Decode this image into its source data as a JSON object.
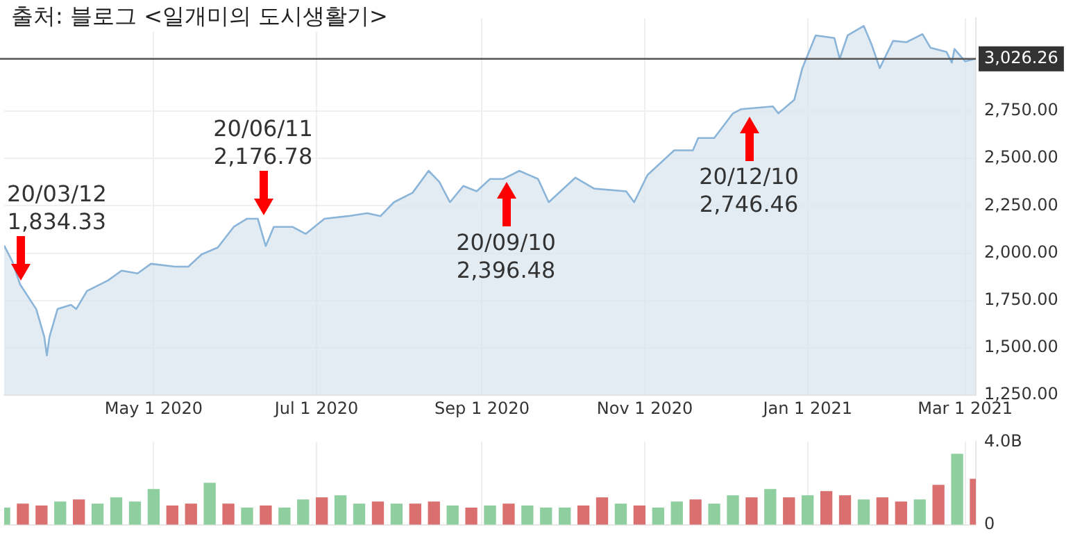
{
  "chart_data": [
    {
      "type": "area",
      "title": "출처: 블로그 <일개미의 도시생활기>",
      "series": [
        {
          "color": "#8ab4d8",
          "x": [
            "2020-03-06",
            "2020-03-09",
            "2020-03-12",
            "2020-03-18",
            "2020-03-21",
            "2020-03-22",
            "2020-03-23",
            "2020-03-26",
            "2020-03-31",
            "2020-04-02",
            "2020-04-06",
            "2020-04-14",
            "2020-04-19",
            "2020-04-25",
            "2020-04-30",
            "2020-05-09",
            "2020-05-14",
            "2020-05-19",
            "2020-05-25",
            "2020-05-31",
            "2020-06-05",
            "2020-06-09",
            "2020-06-12",
            "2020-06-15",
            "2020-06-22",
            "2020-06-27",
            "2020-07-04",
            "2020-07-13",
            "2020-07-20",
            "2020-07-25",
            "2020-07-30",
            "2020-08-06",
            "2020-08-12",
            "2020-08-16",
            "2020-08-20",
            "2020-08-25",
            "2020-08-30",
            "2020-09-04",
            "2020-09-09",
            "2020-09-15",
            "2020-09-22",
            "2020-09-26",
            "2020-10-06",
            "2020-10-13",
            "2020-10-25",
            "2020-10-28",
            "2020-11-02",
            "2020-11-12",
            "2020-11-19",
            "2020-11-21",
            "2020-11-27",
            "2020-12-04",
            "2020-12-07",
            "2020-12-19",
            "2020-12-21",
            "2020-12-27",
            "2020-12-30",
            "2021-01-04",
            "2021-01-11",
            "2021-01-13",
            "2021-01-16",
            "2021-01-22",
            "2021-01-25",
            "2021-01-28",
            "2021-02-02",
            "2021-02-07",
            "2021-02-13",
            "2021-02-16",
            "2021-02-22",
            "2021-02-24",
            "2021-02-25",
            "2021-03-01",
            "2021-03-05"
          ],
          "values": [
            2040,
            1958,
            1834.33,
            1705,
            1560,
            1460,
            1560,
            1705,
            1727,
            1705,
            1800,
            1857,
            1908,
            1893,
            1944,
            1929,
            1929,
            1994,
            2030,
            2139,
            2182,
            2182,
            2038,
            2139,
            2139,
            2102,
            2182,
            2196,
            2211,
            2196,
            2269,
            2319,
            2435,
            2377,
            2269,
            2355,
            2327,
            2392,
            2392,
            2435,
            2392,
            2269,
            2399,
            2341,
            2327,
            2269,
            2413,
            2543,
            2543,
            2608,
            2608,
            2738,
            2760,
            2775,
            2738,
            2810,
            2977,
            3150,
            3136,
            3027,
            3150,
            3200,
            3100,
            2977,
            3121,
            3114,
            3157,
            3085,
            3063,
            3006,
            3078,
            3013,
            3026.26
          ]
        }
      ],
      "xlim": [
        "2020-03-06",
        "2021-03-05"
      ],
      "xticks": [
        {
          "value": "2020-05-01",
          "label": "May 1 2020"
        },
        {
          "value": "2020-07-01",
          "label": "Jul 1 2020"
        },
        {
          "value": "2020-09-01",
          "label": "Sep 1 2020"
        },
        {
          "value": "2020-11-01",
          "label": "Nov 1 2020"
        },
        {
          "value": "2021-01-01",
          "label": "Jan 1 2021"
        },
        {
          "value": "2021-03-01",
          "label": "Mar 1 2021"
        }
      ],
      "ylim": [
        1250,
        3240
      ],
      "yticks": [
        {
          "value": 1250,
          "label": "1,250.00"
        },
        {
          "value": 1500,
          "label": "1,500.00"
        },
        {
          "value": 1750,
          "label": "1,750.00"
        },
        {
          "value": 2000,
          "label": "2,000.00"
        },
        {
          "value": 2250,
          "label": "2,250.00"
        },
        {
          "value": 2500,
          "label": "2,500.00"
        },
        {
          "value": 2750,
          "label": "2,750.00"
        }
      ],
      "ref_lines": [
        {
          "axis": "y",
          "value": 3026.26,
          "label": "3,026.26",
          "color": "#555555"
        }
      ],
      "annotations": [
        {
          "text": "20/03/12\n1,834.33",
          "x": "2020-03-12",
          "y": 1834.33
        },
        {
          "text": "20/06/11\n2,176.78",
          "x": "2020-06-11",
          "y": 2176.78
        },
        {
          "text": "20/09/10\n2,396.48",
          "x": "2020-09-10",
          "y": 2396.48
        },
        {
          "text": "20/12/10\n2,746.46",
          "x": "2020-12-10",
          "y": 2746.46
        }
      ],
      "grid": true,
      "legend": false
    },
    {
      "type": "bar",
      "x": [
        "2020-03-06",
        "2020-03-13",
        "2020-03-20",
        "2020-03-27",
        "2020-04-03",
        "2020-04-10",
        "2020-04-17",
        "2020-04-24",
        "2020-05-01",
        "2020-05-08",
        "2020-05-15",
        "2020-05-22",
        "2020-05-29",
        "2020-06-05",
        "2020-06-12",
        "2020-06-19",
        "2020-06-26",
        "2020-07-03",
        "2020-07-10",
        "2020-07-17",
        "2020-07-24",
        "2020-07-31",
        "2020-08-07",
        "2020-08-14",
        "2020-08-21",
        "2020-08-28",
        "2020-09-04",
        "2020-09-11",
        "2020-09-18",
        "2020-09-25",
        "2020-10-02",
        "2020-10-09",
        "2020-10-16",
        "2020-10-23",
        "2020-10-30",
        "2020-11-06",
        "2020-11-13",
        "2020-11-20",
        "2020-11-27",
        "2020-12-04",
        "2020-12-11",
        "2020-12-18",
        "2020-12-25",
        "2021-01-01",
        "2021-01-08",
        "2021-01-15",
        "2021-01-22",
        "2021-01-29",
        "2021-02-05",
        "2021-02-12",
        "2021-02-19",
        "2021-02-26",
        "2021-03-05"
      ],
      "values": [
        0.8,
        1.0,
        0.9,
        1.1,
        1.2,
        1.0,
        1.3,
        1.1,
        1.7,
        0.9,
        1.0,
        2.0,
        1.0,
        0.8,
        0.9,
        0.8,
        1.2,
        1.3,
        1.4,
        1.0,
        1.1,
        1.0,
        1.0,
        1.1,
        0.9,
        0.8,
        0.9,
        1.0,
        0.9,
        0.8,
        0.8,
        0.9,
        1.3,
        1.0,
        0.9,
        0.8,
        1.1,
        1.2,
        1.0,
        1.4,
        1.3,
        1.7,
        1.3,
        1.4,
        1.6,
        1.4,
        1.2,
        1.3,
        1.1,
        1.2,
        1.9,
        3.4,
        2.2
      ],
      "colors": [
        "#8fcf9f",
        "#d9706f",
        "#d9706f",
        "#8fcf9f",
        "#d9706f",
        "#8fcf9f",
        "#8fcf9f",
        "#8fcf9f",
        "#8fcf9f",
        "#d9706f",
        "#d9706f",
        "#8fcf9f",
        "#d9706f",
        "#8fcf9f",
        "#d9706f",
        "#8fcf9f",
        "#8fcf9f",
        "#d9706f",
        "#8fcf9f",
        "#8fcf9f",
        "#d9706f",
        "#8fcf9f",
        "#d9706f",
        "#d9706f",
        "#8fcf9f",
        "#d9706f",
        "#8fcf9f",
        "#d9706f",
        "#8fcf9f",
        "#8fcf9f",
        "#8fcf9f",
        "#d9706f",
        "#d9706f",
        "#8fcf9f",
        "#d9706f",
        "#8fcf9f",
        "#8fcf9f",
        "#d9706f",
        "#8fcf9f",
        "#8fcf9f",
        "#d9706f",
        "#8fcf9f",
        "#d9706f",
        "#8fcf9f",
        "#d9706f",
        "#d9706f",
        "#8fcf9f",
        "#d9706f",
        "#d9706f",
        "#8fcf9f",
        "#d9706f",
        "#8fcf9f",
        "#d9706f"
      ],
      "xlim": [
        "2020-03-06",
        "2021-03-05"
      ],
      "xticks": [
        {
          "value": "2020-05-01",
          "label": null
        },
        {
          "value": "2020-07-01",
          "label": null
        },
        {
          "value": "2020-09-01",
          "label": null
        },
        {
          "value": "2020-11-01",
          "label": null
        },
        {
          "value": "2021-01-01",
          "label": null
        },
        {
          "value": "2021-03-01",
          "label": null
        }
      ],
      "ylim": [
        0,
        4
      ],
      "yticks": [
        0,
        {
          "value": 4,
          "label": "4.0B"
        }
      ],
      "tick_labels": "y",
      "grid": "x",
      "legend": false
    }
  ]
}
